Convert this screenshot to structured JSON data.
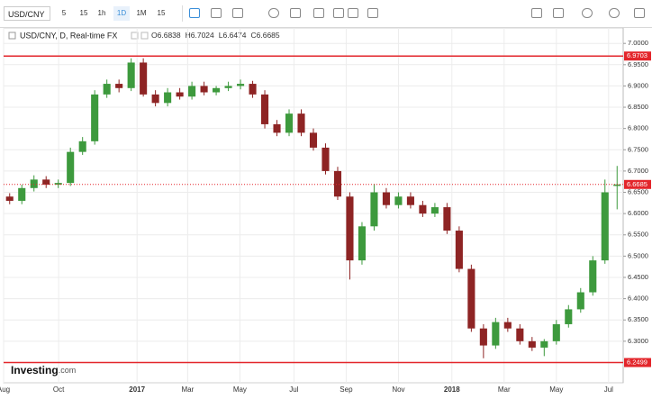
{
  "toolbar": {
    "symbol": "USD/CNY",
    "intervals": [
      "5",
      "15",
      "1h",
      "1D",
      "1M",
      "15"
    ],
    "active": 3
  },
  "branding": {
    "name": "Investing",
    "suffix": ".com"
  },
  "chart_data": {
    "type": "candlestick",
    "title": "USD/CNY, D, Real-time FX",
    "quote": [
      {
        "label": "O",
        "value": 6.6838
      },
      {
        "label": "H",
        "value": 6.7024
      },
      {
        "label": "L",
        "value": 6.6474
      },
      {
        "label": "C",
        "value": 6.6685
      }
    ],
    "up_color": "#3d9a3d",
    "down_color": "#8e2424",
    "x": [
      1,
      3,
      5,
      7,
      9,
      11,
      13,
      15,
      17,
      19,
      21,
      23,
      25,
      27,
      29,
      31,
      33,
      35,
      37,
      39,
      41,
      43,
      45,
      47,
      49,
      51,
      53,
      55,
      57,
      59,
      61,
      63,
      65,
      67,
      69,
      71,
      73,
      75,
      77,
      79,
      81,
      83,
      85,
      87,
      89,
      91,
      93,
      95,
      97,
      99,
      101
    ],
    "open": [
      6.64,
      6.63,
      6.66,
      6.68,
      6.668,
      6.672,
      6.745,
      6.77,
      6.88,
      6.905,
      6.895,
      6.955,
      6.88,
      6.86,
      6.885,
      6.875,
      6.9,
      6.885,
      6.895,
      6.9,
      6.905,
      6.88,
      6.81,
      6.79,
      6.835,
      6.79,
      6.755,
      6.7,
      6.64,
      6.49,
      6.57,
      6.65,
      6.62,
      6.64,
      6.62,
      6.6,
      6.615,
      6.56,
      6.47,
      6.33,
      6.29,
      6.345,
      6.33,
      6.3,
      6.285,
      6.3,
      6.34,
      6.375,
      6.415,
      6.49,
      6.665
    ],
    "high": [
      6.648,
      6.668,
      6.69,
      6.688,
      6.68,
      6.755,
      6.78,
      6.89,
      6.915,
      6.915,
      6.965,
      6.965,
      6.89,
      6.895,
      6.895,
      6.91,
      6.91,
      6.9,
      6.91,
      6.915,
      6.912,
      6.89,
      6.82,
      6.845,
      6.845,
      6.8,
      6.765,
      6.71,
      6.65,
      6.58,
      6.67,
      6.66,
      6.65,
      6.65,
      6.63,
      6.625,
      6.625,
      6.57,
      6.48,
      6.34,
      6.355,
      6.355,
      6.34,
      6.31,
      6.305,
      6.35,
      6.385,
      6.425,
      6.5,
      6.68,
      6.712
    ],
    "low": [
      6.622,
      6.622,
      6.652,
      6.66,
      6.66,
      6.665,
      6.738,
      6.762,
      6.872,
      6.885,
      6.888,
      6.875,
      6.852,
      6.852,
      6.868,
      6.868,
      6.878,
      6.878,
      6.888,
      6.892,
      6.872,
      6.8,
      6.782,
      6.782,
      6.782,
      6.748,
      6.692,
      6.632,
      6.445,
      6.48,
      6.56,
      6.612,
      6.612,
      6.612,
      6.592,
      6.592,
      6.552,
      6.462,
      6.322,
      6.26,
      6.282,
      6.322,
      6.292,
      6.277,
      6.265,
      6.292,
      6.332,
      6.367,
      6.407,
      6.482,
      6.61
    ],
    "close": [
      6.63,
      6.66,
      6.68,
      6.668,
      6.672,
      6.745,
      6.77,
      6.88,
      6.905,
      6.895,
      6.955,
      6.88,
      6.86,
      6.885,
      6.875,
      6.9,
      6.885,
      6.895,
      6.9,
      6.905,
      6.88,
      6.81,
      6.79,
      6.835,
      6.79,
      6.755,
      6.7,
      6.64,
      6.49,
      6.57,
      6.65,
      6.62,
      6.64,
      6.62,
      6.6,
      6.615,
      6.56,
      6.47,
      6.33,
      6.29,
      6.345,
      6.33,
      6.3,
      6.285,
      6.3,
      6.34,
      6.375,
      6.415,
      6.49,
      6.65,
      6.6685
    ],
    "hlines": [
      6.9703,
      6.2499
    ],
    "hline_color": "#e3262b",
    "last_price": 6.6685,
    "xlim": [
      0,
      102
    ],
    "xticks": [
      {
        "value": 0,
        "label": "Aug"
      },
      {
        "value": 9.06,
        "label": "Oct"
      },
      {
        "value": 21.97,
        "label": "2017"
      },
      {
        "value": 30.3,
        "label": "Mar"
      },
      {
        "value": 38.9,
        "label": "May"
      },
      {
        "value": 47.8,
        "label": "Jul"
      },
      {
        "value": 56.4,
        "label": "Sep"
      },
      {
        "value": 65.0,
        "label": "Nov"
      },
      {
        "value": 73.8,
        "label": "2018"
      },
      {
        "value": 82.4,
        "label": "Mar"
      },
      {
        "value": 91.0,
        "label": "May"
      },
      {
        "value": 99.6,
        "label": "Jul"
      }
    ],
    "ylim": [
      6.2023,
      7.0364
    ],
    "yticks": [
      {
        "value": 6.3,
        "label": "6.3000"
      },
      {
        "value": 6.35,
        "label": "6.3500"
      },
      {
        "value": 6.4,
        "label": "6.4000"
      },
      {
        "value": 6.45,
        "label": "6.4500"
      },
      {
        "value": 6.5,
        "label": "6.5000"
      },
      {
        "value": 6.55,
        "label": "6.5500"
      },
      {
        "value": 6.6,
        "label": "6.6000"
      },
      {
        "value": 6.65,
        "label": "6.6500"
      },
      {
        "value": 6.7,
        "label": "6.7000"
      },
      {
        "value": 6.75,
        "label": "6.7500"
      },
      {
        "value": 6.8,
        "label": "6.8000"
      },
      {
        "value": 6.85,
        "label": "6.8500"
      },
      {
        "value": 6.9,
        "label": "6.9000"
      },
      {
        "value": 6.95,
        "label": "6.9500"
      },
      {
        "value": 7,
        "label": "7.0000"
      }
    ],
    "grid": true
  }
}
